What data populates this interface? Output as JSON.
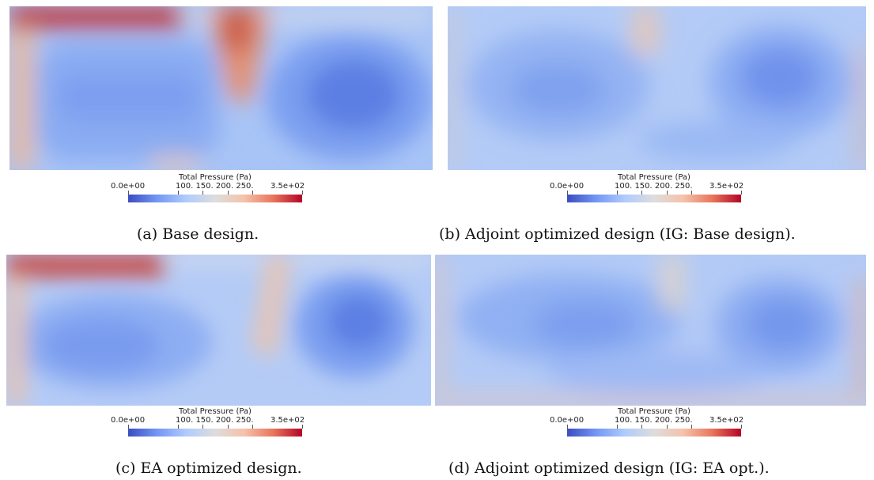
{
  "colorbar": {
    "title": "Total Pressure (Pa)",
    "min_label": "0.0e+00",
    "mid_labels": "100.  150.  200.  250.",
    "max_label": "3.5e+02",
    "range": [
      0,
      350
    ],
    "ticks": [
      100,
      150,
      200,
      250
    ],
    "colors": [
      "#3b4cc0",
      "#7396f5",
      "#b0cbfc",
      "#dddddd",
      "#f5c2aa",
      "#e8765c",
      "#b40426"
    ]
  },
  "captions": {
    "a": "(a) Base design.",
    "b": "(b) Adjoint optimized design (IG: Base design).",
    "c": "(c) EA optimized design.",
    "d": "(d) Adjoint optimized design (IG: EA opt.)."
  }
}
